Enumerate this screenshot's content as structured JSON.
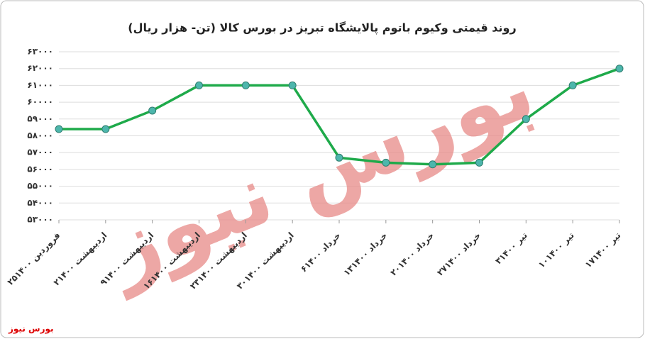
{
  "chart_data": {
    "type": "line",
    "title": "روند قیمتی وکیوم باتوم پالایشگاه تبریز در بورس کالا (تن- هزار ریال)",
    "watermark": "بورس نیوز",
    "footer": "بورس نیوز",
    "categories": [
      "۲۵فروردین ۱۴۰۰",
      "۲اردیبهشت ۱۴۰۰",
      "۹اردیبهشت ۱۴۰۰",
      "۱۶اردیبهشت ۱۴۰۰",
      "۲۳اردیبهشت ۱۴۰۰",
      "۳۰اردیبهشت ۱۴۰۰",
      "۶خرداد ۱۴۰۰",
      "۱۳خرداد ۱۴۰۰",
      "۲۰خرداد ۱۴۰۰",
      "۲۷خرداد ۱۴۰۰",
      "۳تیر ۱۴۰۰",
      "۱۰تیر ۱۴۰۰",
      "۱۷تیر ۱۴۰۰"
    ],
    "values": [
      58400,
      58400,
      59500,
      61000,
      61000,
      61000,
      56700,
      56400,
      56300,
      56400,
      59000,
      61000,
      62000
    ],
    "color": "#1eaa4a",
    "marker_color": "#4db6ac",
    "ylim": [
      53000,
      63000
    ],
    "yticks": [
      {
        "value": 53000,
        "label": "۵۳۰۰۰"
      },
      {
        "value": 54000,
        "label": "۵۴۰۰۰"
      },
      {
        "value": 55000,
        "label": "۵۵۰۰۰"
      },
      {
        "value": 56000,
        "label": "۵۶۰۰۰"
      },
      {
        "value": 57000,
        "label": "۵۷۰۰۰"
      },
      {
        "value": 58000,
        "label": "۵۸۰۰۰"
      },
      {
        "value": 59000,
        "label": "۵۹۰۰۰"
      },
      {
        "value": 60000,
        "label": "۶۰۰۰۰"
      },
      {
        "value": 61000,
        "label": "۶۱۰۰۰"
      },
      {
        "value": 62000,
        "label": "۶۲۰۰۰"
      },
      {
        "value": 63000,
        "label": "۶۳۰۰۰"
      }
    ],
    "grid": true
  }
}
